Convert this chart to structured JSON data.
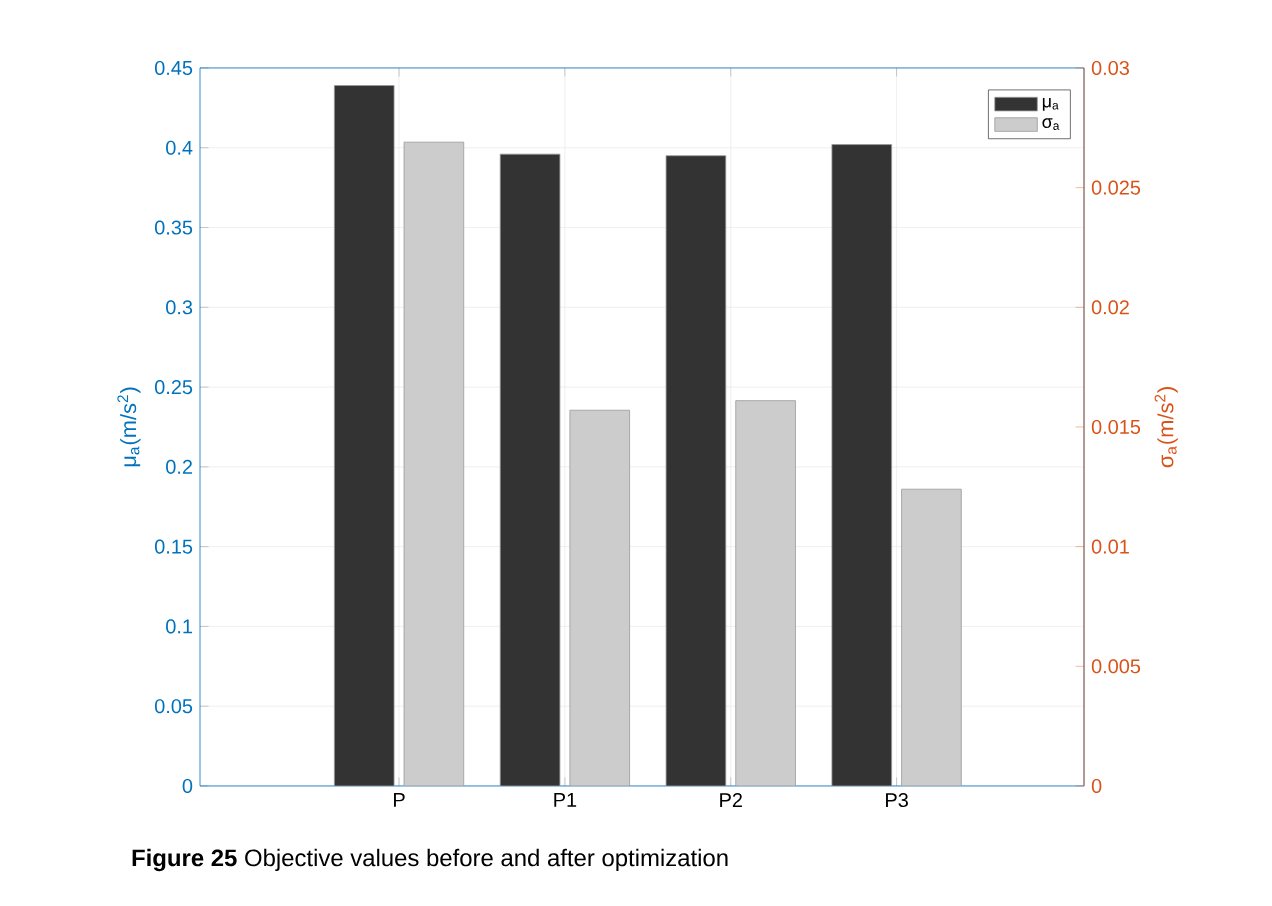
{
  "chart_data": {
    "type": "bar",
    "categories": [
      "P",
      "P1",
      "P2",
      "P3"
    ],
    "series": [
      {
        "name": "μ$_{a}$",
        "color": "#333333",
        "values": [
          0.439,
          0.396,
          0.395,
          0.402
        ],
        "axis": "y"
      },
      {
        "name": "σ$_{a}$",
        "color": "#cccccc",
        "values": [
          0.0269,
          0.0157,
          0.0161,
          0.0124
        ],
        "axis": "y2"
      }
    ],
    "ylabel": "μ$_{a}$(m/s$^{2}$)",
    "y2label": "σ$_{a}$(m/s$^{2}$)",
    "ylim": [
      0,
      0.45
    ],
    "yticks": [
      0,
      0.05,
      0.1,
      0.15,
      0.2,
      0.25,
      0.3,
      0.35,
      0.4,
      0.45
    ],
    "y2lim": [
      0,
      0.03
    ],
    "y2ticks": [
      0,
      0.005,
      0.01,
      0.015,
      0.02,
      0.025,
      0.03
    ],
    "grid": true,
    "legend": "top right",
    "annotations": [
      "**Figure 25** Objective values before and after optimization"
    ]
  }
}
